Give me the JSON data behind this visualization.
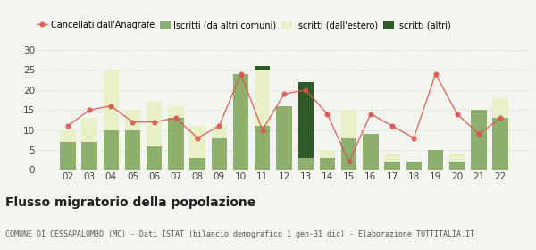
{
  "years": [
    "02",
    "03",
    "04",
    "05",
    "06",
    "07",
    "08",
    "09",
    "10",
    "11",
    "12",
    "13",
    "14",
    "15",
    "16",
    "17",
    "18",
    "19",
    "20",
    "21",
    "22"
  ],
  "iscritti_da_altri": [
    7,
    7,
    10,
    10,
    6,
    13,
    3,
    8,
    24,
    11,
    16,
    3,
    3,
    8,
    9,
    2,
    2,
    5,
    2,
    15,
    13
  ],
  "iscritti_estero": [
    3,
    6,
    15,
    5,
    11,
    3,
    8,
    3,
    0,
    14,
    0,
    0,
    2,
    7,
    0,
    2,
    0,
    0,
    2,
    0,
    5
  ],
  "iscritti_altri": [
    0,
    0,
    0,
    0,
    0,
    0,
    0,
    0,
    0,
    1,
    0,
    19,
    0,
    0,
    0,
    0,
    0,
    0,
    0,
    0,
    0
  ],
  "cancellati": [
    11,
    15,
    16,
    12,
    12,
    13,
    8,
    11,
    24,
    10,
    19,
    20,
    14,
    2,
    14,
    11,
    8,
    24,
    14,
    9,
    13
  ],
  "color_da_altri": "#8faf6e",
  "color_estero": "#e8f0c8",
  "color_altri": "#2d5a27",
  "color_cancellati": "#d9534f",
  "legend_labels": [
    "Iscritti (da altri comuni)",
    "Iscritti (dall'estero)",
    "Iscritti (altri)",
    "Cancellati dall'Anagrafe"
  ],
  "title": "Flusso migratorio della popolazione",
  "subtitle": "COMUNE DI CESSAPALOMBO (MC) - Dati ISTAT (bilancio demografico 1 gen-31 dic) - Elaborazione TUTTITALIA.IT",
  "ylim": [
    0,
    30
  ],
  "yticks": [
    0,
    5,
    10,
    15,
    20,
    25,
    30
  ],
  "bg_color": "#f5f5f0",
  "grid_color": "#d0d0d0"
}
